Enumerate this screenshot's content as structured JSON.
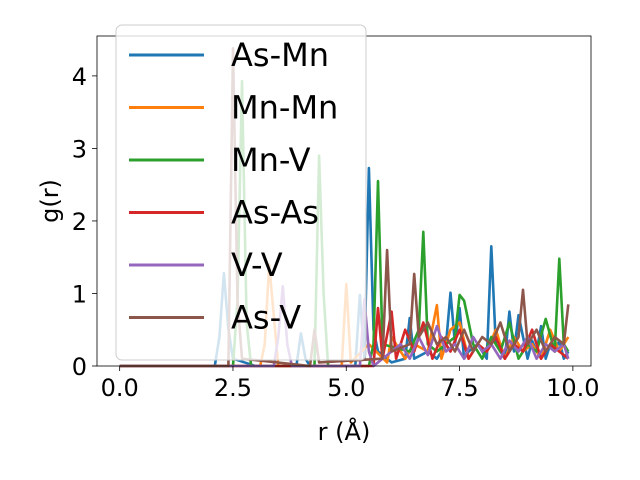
{
  "chart_data": {
    "type": "line",
    "xlabel": "r (Å)",
    "ylabel": "g(r)",
    "xlim": [
      -0.5,
      10.4
    ],
    "ylim": [
      0,
      4.55
    ],
    "xticks": [
      0.0,
      2.5,
      5.0,
      7.5,
      10.0
    ],
    "xtick_labels": [
      "0.0",
      "2.5",
      "5.0",
      "7.5",
      "10.0"
    ],
    "yticks": [
      0,
      1,
      2,
      3,
      4
    ],
    "ytick_labels": [
      "0",
      "1",
      "2",
      "3",
      "4"
    ],
    "grid": false,
    "legend_position": "upper-left",
    "series": [
      {
        "name": "As-Mn",
        "color": "#1f77b4",
        "x": [
          0,
          2.1,
          2.2,
          2.3,
          2.4,
          2.5,
          3.0,
          3.5,
          3.9,
          4.0,
          4.1,
          4.2,
          4.6,
          5.2,
          5.3,
          5.4,
          5.5,
          5.6,
          5.7,
          6.0,
          6.3,
          6.4,
          6.5,
          6.8,
          7.0,
          7.2,
          7.3,
          7.4,
          7.5,
          7.6,
          7.7,
          7.9,
          8.1,
          8.2,
          8.3,
          8.5,
          8.6,
          8.7,
          8.8,
          9.0,
          9.1,
          9.2,
          9.3,
          9.4,
          9.5,
          9.6,
          9.7,
          9.8,
          9.9
        ],
        "y": [
          0,
          0,
          0.4,
          1.28,
          0.5,
          0.1,
          0,
          0,
          0,
          0.45,
          0.1,
          0,
          0,
          0,
          0.98,
          0.1,
          2.73,
          0.5,
          0.2,
          0.05,
          0.1,
          0.66,
          0.1,
          0.2,
          0.1,
          0.3,
          1.01,
          0.3,
          0.8,
          0.1,
          0.2,
          0.3,
          0.1,
          1.65,
          0.3,
          0.1,
          0.75,
          0.2,
          0.7,
          0.1,
          0.35,
          0.2,
          0.55,
          0.1,
          0.3,
          0.2,
          0.35,
          0.1,
          0.2
        ]
      },
      {
        "name": "Mn-Mn",
        "color": "#ff7f0e",
        "x": [
          0,
          3.1,
          3.2,
          3.3,
          3.5,
          4.9,
          5.0,
          5.1,
          5.5,
          5.9,
          6.0,
          6.3,
          6.5,
          6.8,
          7.0,
          7.1,
          7.3,
          7.5,
          7.7,
          7.9,
          8.1,
          8.3,
          8.5,
          8.7,
          8.9,
          9.1,
          9.3,
          9.5,
          9.7,
          9.9
        ],
        "y": [
          0,
          0,
          0.3,
          1.4,
          0,
          0,
          1.13,
          0.05,
          0.3,
          0.05,
          0.4,
          0.1,
          0.3,
          0.2,
          0.84,
          0.1,
          0.5,
          0.6,
          0.1,
          0.3,
          0.2,
          0.5,
          0.1,
          0.4,
          0.2,
          0.3,
          0.1,
          0.5,
          0.2,
          0.4
        ]
      },
      {
        "name": "Mn-V",
        "color": "#2ca02c",
        "x": [
          0,
          2.5,
          2.6,
          2.7,
          2.8,
          2.9,
          4.3,
          4.4,
          4.5,
          4.6,
          5.5,
          5.6,
          5.7,
          5.8,
          6.4,
          6.6,
          6.7,
          6.8,
          7.0,
          7.4,
          7.5,
          7.6,
          7.8,
          8.0,
          8.2,
          8.4,
          8.6,
          8.8,
          9.0,
          9.2,
          9.4,
          9.6,
          9.7,
          9.8,
          9.9
        ],
        "y": [
          0,
          0,
          0.9,
          3.93,
          0.6,
          0,
          0,
          2.9,
          1.0,
          0,
          0,
          0.3,
          2.55,
          0.3,
          0.2,
          0.5,
          1.85,
          0.3,
          0.2,
          0.4,
          0.98,
          0.9,
          0.3,
          0.1,
          0.4,
          0.2,
          0.6,
          0.1,
          0.3,
          0.2,
          0.65,
          0.2,
          1.48,
          0.3,
          0.2
        ]
      },
      {
        "name": "As-As",
        "color": "#d62728",
        "x": [
          0,
          5.6,
          5.7,
          5.8,
          6.0,
          6.1,
          6.3,
          6.5,
          6.7,
          6.9,
          7.1,
          7.3,
          7.5,
          7.7,
          7.9,
          8.1,
          8.3,
          8.5,
          8.7,
          8.9,
          9.1,
          9.3,
          9.5,
          9.7,
          9.9
        ],
        "y": [
          0,
          0,
          0.8,
          0.1,
          0.75,
          0.1,
          0.5,
          0.2,
          0.6,
          0.1,
          0.4,
          0.2,
          0.5,
          0.1,
          0.3,
          0.2,
          0.4,
          0.1,
          0.3,
          0.2,
          0.5,
          0.1,
          0.3,
          0.2,
          0.1
        ]
      },
      {
        "name": "V-V",
        "color": "#9467bd",
        "x": [
          0,
          3.4,
          3.5,
          3.6,
          3.7,
          3.8,
          5.3,
          5.4,
          5.5,
          5.6,
          6.2,
          6.4,
          6.6,
          6.8,
          7.0,
          7.2,
          7.4,
          7.6,
          7.8,
          8.0,
          8.2,
          8.4,
          8.6,
          8.8,
          9.0,
          9.2,
          9.4,
          9.6,
          9.8,
          9.9
        ],
        "y": [
          0,
          0,
          0.4,
          1.1,
          0.3,
          0,
          0,
          0.92,
          0.2,
          0,
          0.3,
          0.1,
          0.4,
          0.15,
          0.55,
          0.2,
          0.3,
          0.1,
          0.4,
          0.2,
          0.3,
          0.1,
          0.35,
          0.2,
          0.4,
          0.1,
          0.3,
          0.2,
          0.3,
          0.1
        ]
      },
      {
        "name": "As-V",
        "color": "#8c564b",
        "x": [
          0,
          2.4,
          2.5,
          2.6,
          2.7,
          4.2,
          4.3,
          4.4,
          5.8,
          5.9,
          6.0,
          6.4,
          6.5,
          6.6,
          6.8,
          7.0,
          7.2,
          7.4,
          7.6,
          7.8,
          8.0,
          8.2,
          8.4,
          8.6,
          8.8,
          8.9,
          9.0,
          9.2,
          9.4,
          9.6,
          9.8,
          9.9
        ],
        "y": [
          0,
          0,
          4.38,
          0.9,
          0.1,
          0,
          0.5,
          0.05,
          0.1,
          1.6,
          0.2,
          0.3,
          1.27,
          0.4,
          0.6,
          0.3,
          0.4,
          0.2,
          0.5,
          0.2,
          0.4,
          0.3,
          0.6,
          0.2,
          0.4,
          1.05,
          0.3,
          0.5,
          0.2,
          0.4,
          0.3,
          0.85
        ]
      }
    ]
  }
}
